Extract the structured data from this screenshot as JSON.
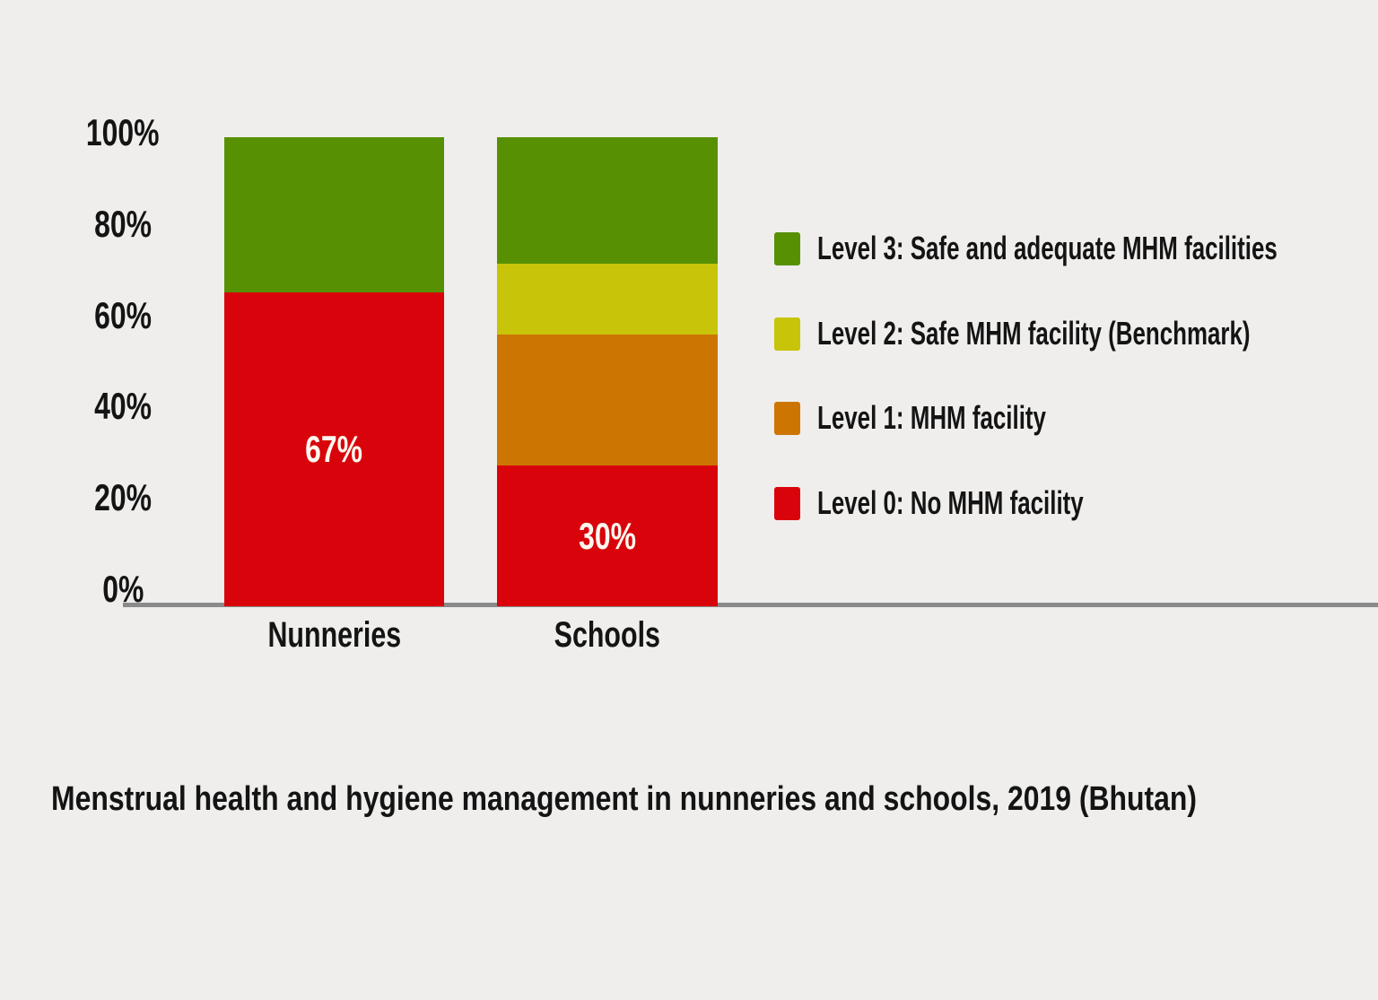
{
  "caption": "Menstrual health and hygiene management in nunneries and schools, 2019 (Bhutan)",
  "colors": {
    "background": "#efeeec",
    "axis": "#8a8a8a",
    "text": "#141414",
    "bar_value_label": "#fcf8ef",
    "level0_red": "#d9040b",
    "level1_orange": "#cd7502",
    "level2_yellow": "#c8c409",
    "level3_green": "#579103"
  },
  "chart_data": {
    "type": "bar",
    "stacked": true,
    "title": "Menstrual health and hygiene management in nunneries and schools, 2019 (Bhutan)",
    "categories": [
      "Nunneries",
      "Schools"
    ],
    "xlabel": "",
    "ylabel": "",
    "ylim": [
      0,
      100
    ],
    "yticks": [
      0,
      20,
      40,
      60,
      80,
      100
    ],
    "ytick_labels": [
      "0%",
      "20%",
      "40%",
      "60%",
      "80%",
      "100%"
    ],
    "grid": false,
    "legend_position": "right",
    "series": [
      {
        "name": "Level 0: No MHM facility",
        "color": "#d9040b",
        "values": [
          67,
          30
        ],
        "data_labels": [
          "67%",
          "30%"
        ]
      },
      {
        "name": "Level 1: MHM facility",
        "color": "#cd7502",
        "values": [
          0,
          28
        ],
        "data_labels": [
          "",
          ""
        ]
      },
      {
        "name": "Level 2: Safe MHM facility (Benchmark)",
        "color": "#c8c409",
        "values": [
          0,
          15
        ],
        "data_labels": [
          "",
          ""
        ]
      },
      {
        "name": "Level 3: Safe and adequate MHM facilities",
        "color": "#579103",
        "values": [
          33,
          27
        ],
        "data_labels": [
          "",
          ""
        ]
      }
    ]
  }
}
